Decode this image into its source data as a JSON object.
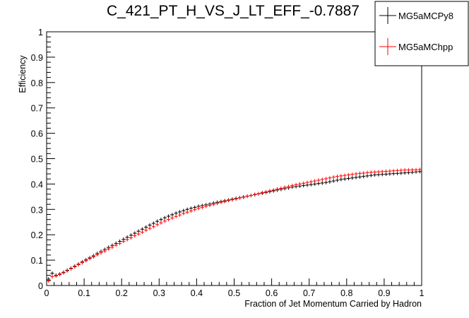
{
  "chart_data": {
    "type": "scatter",
    "title": "C_421_PT_H_VS_J_LT_EFF_-0.7887",
    "xlabel": "Fraction of Jet Momentum Carried by Hadron",
    "ylabel": "Efficiency",
    "xlim": [
      0,
      1
    ],
    "ylim": [
      0,
      1
    ],
    "x_ticks": [
      "0",
      "0.1",
      "0.2",
      "0.3",
      "0.4",
      "0.5",
      "0.6",
      "0.7",
      "0.8",
      "0.9",
      "1"
    ],
    "y_ticks": [
      "0",
      "0.1",
      "0.2",
      "0.3",
      "0.4",
      "0.5",
      "0.6",
      "0.7",
      "0.8",
      "0.9",
      "1"
    ],
    "grid": false,
    "legend_position": "top-right",
    "series": [
      {
        "name": "MG5aMCPy8",
        "color": "#000000",
        "points": [
          [
            0.005,
            0.025
          ],
          [
            0.015,
            0.048
          ],
          [
            0.025,
            0.04
          ],
          [
            0.035,
            0.045
          ],
          [
            0.045,
            0.052
          ],
          [
            0.055,
            0.06
          ],
          [
            0.065,
            0.068
          ],
          [
            0.075,
            0.076
          ],
          [
            0.085,
            0.084
          ],
          [
            0.095,
            0.093
          ],
          [
            0.105,
            0.101
          ],
          [
            0.115,
            0.109
          ],
          [
            0.125,
            0.117
          ],
          [
            0.135,
            0.126
          ],
          [
            0.145,
            0.134
          ],
          [
            0.155,
            0.142
          ],
          [
            0.165,
            0.15
          ],
          [
            0.175,
            0.158
          ],
          [
            0.185,
            0.166
          ],
          [
            0.195,
            0.174
          ],
          [
            0.205,
            0.182
          ],
          [
            0.215,
            0.19
          ],
          [
            0.225,
            0.198
          ],
          [
            0.235,
            0.206
          ],
          [
            0.245,
            0.214
          ],
          [
            0.255,
            0.222
          ],
          [
            0.265,
            0.23
          ],
          [
            0.275,
            0.238
          ],
          [
            0.285,
            0.245
          ],
          [
            0.295,
            0.253
          ],
          [
            0.305,
            0.26
          ],
          [
            0.315,
            0.267
          ],
          [
            0.325,
            0.273
          ],
          [
            0.335,
            0.279
          ],
          [
            0.345,
            0.285
          ],
          [
            0.355,
            0.29
          ],
          [
            0.365,
            0.295
          ],
          [
            0.375,
            0.3
          ],
          [
            0.385,
            0.304
          ],
          [
            0.395,
            0.308
          ],
          [
            0.405,
            0.312
          ],
          [
            0.415,
            0.315
          ],
          [
            0.425,
            0.318
          ],
          [
            0.435,
            0.321
          ],
          [
            0.445,
            0.325
          ],
          [
            0.455,
            0.328
          ],
          [
            0.465,
            0.331
          ],
          [
            0.475,
            0.334
          ],
          [
            0.485,
            0.337
          ],
          [
            0.495,
            0.34
          ],
          [
            0.505,
            0.343
          ],
          [
            0.515,
            0.346
          ],
          [
            0.525,
            0.349
          ],
          [
            0.535,
            0.352
          ],
          [
            0.545,
            0.355
          ],
          [
            0.555,
            0.358
          ],
          [
            0.565,
            0.361
          ],
          [
            0.575,
            0.364
          ],
          [
            0.585,
            0.367
          ],
          [
            0.595,
            0.37
          ],
          [
            0.605,
            0.373
          ],
          [
            0.615,
            0.376
          ],
          [
            0.625,
            0.379
          ],
          [
            0.635,
            0.382
          ],
          [
            0.645,
            0.385
          ],
          [
            0.655,
            0.388
          ],
          [
            0.665,
            0.39
          ],
          [
            0.675,
            0.392
          ],
          [
            0.685,
            0.394
          ],
          [
            0.695,
            0.396
          ],
          [
            0.705,
            0.398
          ],
          [
            0.715,
            0.4
          ],
          [
            0.725,
            0.402
          ],
          [
            0.735,
            0.404
          ],
          [
            0.745,
            0.406
          ],
          [
            0.755,
            0.409
          ],
          [
            0.765,
            0.412
          ],
          [
            0.775,
            0.415
          ],
          [
            0.785,
            0.418
          ],
          [
            0.795,
            0.42
          ],
          [
            0.805,
            0.422
          ],
          [
            0.815,
            0.424
          ],
          [
            0.825,
            0.426
          ],
          [
            0.835,
            0.428
          ],
          [
            0.845,
            0.43
          ],
          [
            0.855,
            0.432
          ],
          [
            0.865,
            0.434
          ],
          [
            0.875,
            0.436
          ],
          [
            0.885,
            0.437
          ],
          [
            0.895,
            0.438
          ],
          [
            0.905,
            0.439
          ],
          [
            0.915,
            0.44
          ],
          [
            0.925,
            0.441
          ],
          [
            0.935,
            0.442
          ],
          [
            0.945,
            0.443
          ],
          [
            0.955,
            0.444
          ],
          [
            0.965,
            0.445
          ],
          [
            0.975,
            0.446
          ],
          [
            0.985,
            0.448
          ],
          [
            0.995,
            0.449
          ]
        ]
      },
      {
        "name": "MG5aMChpp",
        "color": "#ff0000",
        "points": [
          [
            0.005,
            0.018
          ],
          [
            0.015,
            0.035
          ],
          [
            0.025,
            0.038
          ],
          [
            0.035,
            0.043
          ],
          [
            0.045,
            0.05
          ],
          [
            0.055,
            0.058
          ],
          [
            0.065,
            0.066
          ],
          [
            0.075,
            0.074
          ],
          [
            0.085,
            0.082
          ],
          [
            0.095,
            0.09
          ],
          [
            0.105,
            0.098
          ],
          [
            0.115,
            0.106
          ],
          [
            0.125,
            0.113
          ],
          [
            0.135,
            0.121
          ],
          [
            0.145,
            0.129
          ],
          [
            0.155,
            0.136
          ],
          [
            0.165,
            0.144
          ],
          [
            0.175,
            0.151
          ],
          [
            0.185,
            0.159
          ],
          [
            0.195,
            0.166
          ],
          [
            0.205,
            0.174
          ],
          [
            0.215,
            0.181
          ],
          [
            0.225,
            0.188
          ],
          [
            0.235,
            0.196
          ],
          [
            0.245,
            0.203
          ],
          [
            0.255,
            0.21
          ],
          [
            0.265,
            0.218
          ],
          [
            0.275,
            0.225
          ],
          [
            0.285,
            0.232
          ],
          [
            0.295,
            0.24
          ],
          [
            0.305,
            0.247
          ],
          [
            0.315,
            0.254
          ],
          [
            0.325,
            0.26
          ],
          [
            0.335,
            0.266
          ],
          [
            0.345,
            0.272
          ],
          [
            0.355,
            0.278
          ],
          [
            0.365,
            0.284
          ],
          [
            0.375,
            0.289
          ],
          [
            0.385,
            0.294
          ],
          [
            0.395,
            0.299
          ],
          [
            0.405,
            0.304
          ],
          [
            0.415,
            0.308
          ],
          [
            0.425,
            0.312
          ],
          [
            0.435,
            0.316
          ],
          [
            0.445,
            0.32
          ],
          [
            0.455,
            0.324
          ],
          [
            0.465,
            0.328
          ],
          [
            0.475,
            0.331
          ],
          [
            0.485,
            0.335
          ],
          [
            0.495,
            0.338
          ],
          [
            0.505,
            0.341
          ],
          [
            0.515,
            0.345
          ],
          [
            0.525,
            0.348
          ],
          [
            0.535,
            0.352
          ],
          [
            0.545,
            0.355
          ],
          [
            0.555,
            0.359
          ],
          [
            0.565,
            0.362
          ],
          [
            0.575,
            0.366
          ],
          [
            0.585,
            0.369
          ],
          [
            0.595,
            0.373
          ],
          [
            0.605,
            0.376
          ],
          [
            0.615,
            0.38
          ],
          [
            0.625,
            0.383
          ],
          [
            0.635,
            0.387
          ],
          [
            0.645,
            0.39
          ],
          [
            0.655,
            0.394
          ],
          [
            0.665,
            0.397
          ],
          [
            0.675,
            0.4
          ],
          [
            0.685,
            0.403
          ],
          [
            0.695,
            0.406
          ],
          [
            0.705,
            0.409
          ],
          [
            0.715,
            0.412
          ],
          [
            0.725,
            0.415
          ],
          [
            0.735,
            0.418
          ],
          [
            0.745,
            0.421
          ],
          [
            0.755,
            0.424
          ],
          [
            0.765,
            0.427
          ],
          [
            0.775,
            0.43
          ],
          [
            0.785,
            0.432
          ],
          [
            0.795,
            0.434
          ],
          [
            0.805,
            0.436
          ],
          [
            0.815,
            0.438
          ],
          [
            0.825,
            0.44
          ],
          [
            0.835,
            0.442
          ],
          [
            0.845,
            0.443
          ],
          [
            0.855,
            0.445
          ],
          [
            0.865,
            0.446
          ],
          [
            0.875,
            0.447
          ],
          [
            0.885,
            0.448
          ],
          [
            0.895,
            0.449
          ],
          [
            0.905,
            0.45
          ],
          [
            0.915,
            0.451
          ],
          [
            0.925,
            0.452
          ],
          [
            0.935,
            0.453
          ],
          [
            0.945,
            0.454
          ],
          [
            0.955,
            0.455
          ],
          [
            0.965,
            0.455
          ],
          [
            0.975,
            0.456
          ],
          [
            0.985,
            0.456
          ],
          [
            0.995,
            0.457
          ]
        ]
      }
    ]
  }
}
